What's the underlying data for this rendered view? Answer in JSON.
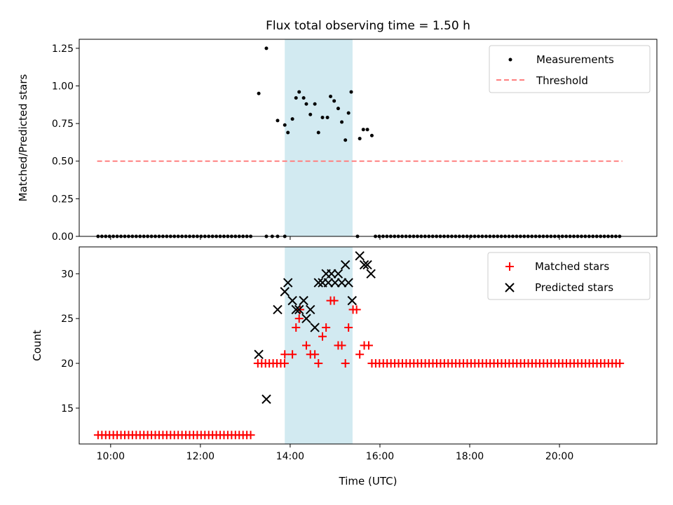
{
  "title": "Flux total observing time = 1.50 h",
  "colors": {
    "measurements": "#000000",
    "threshold": "#ff8080",
    "matched": "#ff0000",
    "predicted": "#000000",
    "shade": "#add8e6"
  },
  "chart_data": [
    {
      "type": "scatter",
      "panel": "top",
      "ylabel": "Matched/Predicted stars",
      "xlim": [
        9.3,
        22.17
      ],
      "ylim": [
        0,
        1.31
      ],
      "yticks": [
        0.0,
        0.25,
        0.5,
        0.75,
        1.0,
        1.25
      ],
      "ytick_labels": [
        "0.00",
        "0.25",
        "0.50",
        "0.75",
        "1.00",
        "1.25"
      ],
      "xticks": [
        10,
        12,
        14,
        16,
        18,
        20
      ],
      "legend": {
        "position": "top-right",
        "entries": [
          "Measurements",
          "Threshold"
        ]
      },
      "shaded_span": [
        13.88,
        15.39
      ],
      "threshold": {
        "name": "Threshold",
        "value": 0.5,
        "x": [
          9.7,
          21.4
        ]
      },
      "series": [
        {
          "name": "Measurements",
          "points": [
            [
              13.3,
              0.95
            ],
            [
              13.47,
              1.25
            ],
            [
              13.72,
              0.77
            ],
            [
              13.88,
              0.74
            ],
            [
              13.95,
              0.69
            ],
            [
              14.05,
              0.78
            ],
            [
              14.13,
              0.92
            ],
            [
              14.2,
              0.96
            ],
            [
              14.3,
              0.92
            ],
            [
              14.36,
              0.88
            ],
            [
              14.45,
              0.81
            ],
            [
              14.55,
              0.88
            ],
            [
              14.63,
              0.69
            ],
            [
              14.72,
              0.79
            ],
            [
              14.83,
              0.79
            ],
            [
              14.9,
              0.93
            ],
            [
              14.98,
              0.9
            ],
            [
              15.07,
              0.85
            ],
            [
              15.15,
              0.76
            ],
            [
              15.23,
              0.64
            ],
            [
              15.3,
              0.82
            ],
            [
              15.36,
              0.96
            ],
            [
              15.55,
              0.65
            ],
            [
              15.63,
              0.71
            ],
            [
              15.72,
              0.71
            ],
            [
              15.82,
              0.67
            ]
          ],
          "zero_segments": [
            {
              "from": 9.72,
              "to": 13.2,
              "step": 0.085
            },
            {
              "from": 15.9,
              "to": 21.4,
              "step": 0.085
            }
          ],
          "zero_extra": [
            13.47,
            13.6,
            13.72,
            13.88,
            15.5
          ]
        }
      ]
    },
    {
      "type": "scatter",
      "panel": "bottom",
      "xlabel": "Time (UTC)",
      "ylabel": "Count",
      "xlim": [
        9.3,
        22.17
      ],
      "ylim": [
        11.0,
        33.0
      ],
      "yticks": [
        15,
        20,
        25,
        30
      ],
      "xticks": [
        10,
        12,
        14,
        16,
        18,
        20
      ],
      "xtick_labels": [
        "10:00",
        "12:00",
        "14:00",
        "16:00",
        "18:00",
        "20:00"
      ],
      "legend": {
        "position": "top-right",
        "entries": [
          "Matched stars",
          "Predicted stars"
        ]
      },
      "shaded_span": [
        13.88,
        15.39
      ],
      "series": [
        {
          "name": "Matched stars",
          "marker": "plus",
          "segments": [
            {
              "from": 9.72,
              "to": 13.2,
              "step": 0.085,
              "y": 12
            },
            {
              "from": 13.28,
              "to": 13.95,
              "step": 0.085,
              "y": 20
            },
            {
              "from": 15.82,
              "to": 21.4,
              "step": 0.085,
              "y": 20
            }
          ],
          "points": [
            [
              13.88,
              21
            ],
            [
              14.05,
              21
            ],
            [
              14.13,
              24
            ],
            [
              14.2,
              25
            ],
            [
              14.22,
              26
            ],
            [
              14.36,
              22
            ],
            [
              14.45,
              21
            ],
            [
              14.55,
              21
            ],
            [
              14.63,
              20
            ],
            [
              14.72,
              23
            ],
            [
              14.8,
              24
            ],
            [
              14.9,
              27
            ],
            [
              14.98,
              27
            ],
            [
              15.07,
              22
            ],
            [
              15.15,
              22
            ],
            [
              15.23,
              20
            ],
            [
              15.3,
              24
            ],
            [
              15.4,
              26
            ],
            [
              15.48,
              26
            ],
            [
              15.55,
              21
            ],
            [
              15.65,
              22
            ],
            [
              15.75,
              22
            ]
          ]
        },
        {
          "name": "Predicted stars",
          "marker": "x",
          "points": [
            [
              13.3,
              21
            ],
            [
              13.47,
              16
            ],
            [
              13.72,
              26
            ],
            [
              13.88,
              28
            ],
            [
              13.95,
              29
            ],
            [
              14.05,
              27
            ],
            [
              14.13,
              26
            ],
            [
              14.2,
              26
            ],
            [
              14.3,
              27
            ],
            [
              14.36,
              25
            ],
            [
              14.45,
              26
            ],
            [
              14.55,
              24
            ],
            [
              14.63,
              29
            ],
            [
              14.72,
              29
            ],
            [
              14.8,
              30
            ],
            [
              14.85,
              29
            ],
            [
              14.92,
              30
            ],
            [
              15.0,
              29
            ],
            [
              15.07,
              30
            ],
            [
              15.15,
              29
            ],
            [
              15.23,
              31
            ],
            [
              15.3,
              29
            ],
            [
              15.38,
              27
            ],
            [
              15.55,
              32
            ],
            [
              15.65,
              31
            ],
            [
              15.72,
              31
            ],
            [
              15.8,
              30
            ]
          ]
        }
      ]
    }
  ]
}
